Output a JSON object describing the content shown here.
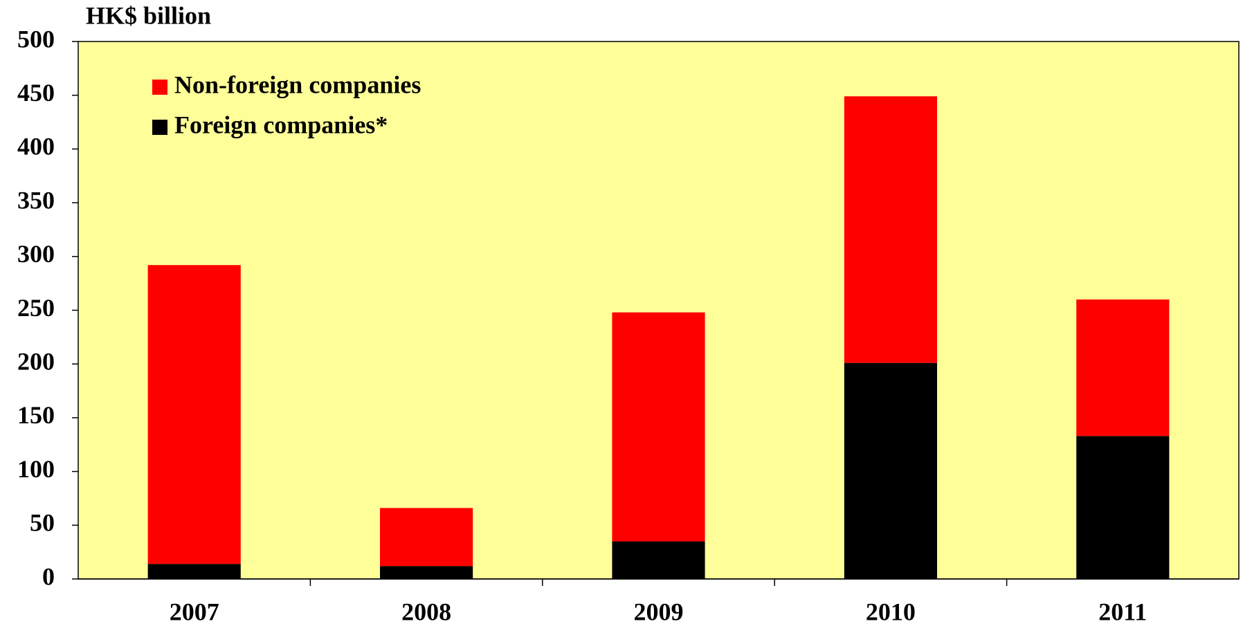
{
  "chart_data": {
    "type": "stacked_bar",
    "y_label": "HK$ billion",
    "categories": [
      "2007",
      "2008",
      "2009",
      "2010",
      "2011"
    ],
    "series": [
      {
        "name": "Non-foreign companies",
        "color": "#ff0000",
        "values": [
          278,
          54,
          213,
          248,
          127
        ]
      },
      {
        "name": "Foreign companies*",
        "color": "#000000",
        "values": [
          14,
          12,
          35,
          201,
          133
        ]
      }
    ],
    "ylim": [
      0,
      500
    ],
    "yticks": [
      0,
      50,
      100,
      150,
      200,
      250,
      300,
      350,
      400,
      450,
      500
    ],
    "plot_background": "#ffff99",
    "legend": "upper left"
  }
}
